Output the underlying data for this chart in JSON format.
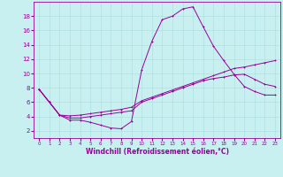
{
  "bg_color": "#c8f0f0",
  "grid_color": "#b0e0e0",
  "line_color": "#990099",
  "xlim": [
    -0.5,
    23.5
  ],
  "ylim": [
    1,
    20
  ],
  "xticks": [
    0,
    1,
    2,
    3,
    4,
    5,
    6,
    7,
    8,
    9,
    10,
    11,
    12,
    13,
    14,
    15,
    16,
    17,
    18,
    19,
    20,
    21,
    22,
    23
  ],
  "yticks": [
    2,
    4,
    6,
    8,
    10,
    12,
    14,
    16,
    18
  ],
  "xlabel": "Windchill (Refroidissement éolien,°C)",
  "line1_x": [
    0,
    1,
    2,
    3,
    4,
    5,
    6,
    7,
    8,
    9,
    10,
    11,
    12,
    13,
    14,
    15,
    16,
    17,
    18,
    19,
    20,
    21,
    22,
    23
  ],
  "line1_y": [
    7.8,
    6.0,
    4.2,
    3.5,
    3.5,
    3.2,
    2.8,
    2.4,
    2.3,
    3.3,
    10.5,
    14.5,
    17.5,
    18.0,
    19.0,
    19.3,
    16.5,
    13.8,
    11.8,
    9.9,
    8.2,
    7.5,
    7.0,
    7.0
  ],
  "line2_x": [
    0,
    1,
    2,
    3,
    4,
    5,
    6,
    7,
    8,
    9,
    10,
    11,
    12,
    13,
    14,
    15,
    16,
    17,
    18,
    19,
    20,
    21,
    22,
    23
  ],
  "line2_y": [
    7.8,
    6.0,
    4.2,
    4.1,
    4.2,
    4.4,
    4.6,
    4.8,
    5.0,
    5.3,
    6.2,
    6.7,
    7.2,
    7.7,
    8.2,
    8.7,
    9.2,
    9.7,
    10.2,
    10.7,
    10.9,
    11.2,
    11.5,
    11.8
  ],
  "line3_x": [
    0,
    1,
    2,
    3,
    4,
    5,
    6,
    7,
    8,
    9,
    10,
    11,
    12,
    13,
    14,
    15,
    16,
    17,
    18,
    19,
    20,
    21,
    22,
    23
  ],
  "line3_y": [
    7.8,
    6.0,
    4.2,
    3.8,
    3.8,
    4.0,
    4.2,
    4.4,
    4.6,
    4.8,
    6.0,
    6.5,
    7.0,
    7.5,
    8.0,
    8.5,
    9.0,
    9.3,
    9.5,
    9.8,
    9.9,
    9.2,
    8.5,
    8.2
  ],
  "tick_fontsize": 5,
  "xlabel_fontsize": 5.5,
  "marker_size": 2,
  "lw": 0.7
}
